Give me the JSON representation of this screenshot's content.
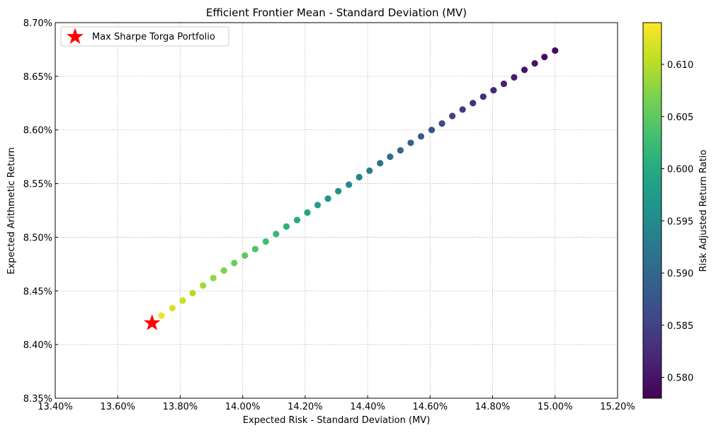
{
  "chart_data": {
    "type": "scatter",
    "title": "Efficient Frontier Mean - Standard Deviation (MV)",
    "xlabel": "Expected Risk - Standard Deviation (MV)",
    "ylabel": "Expected Arithmetic Return",
    "xlim": [
      13.4,
      15.2
    ],
    "ylim": [
      8.35,
      8.7
    ],
    "x_ticks": [
      "13.40%",
      "13.60%",
      "13.80%",
      "14.00%",
      "14.20%",
      "14.40%",
      "14.60%",
      "14.80%",
      "15.00%",
      "15.20%"
    ],
    "y_ticks": [
      "8.35%",
      "8.40%",
      "8.45%",
      "8.50%",
      "8.55%",
      "8.60%",
      "8.65%",
      "8.70%"
    ],
    "grid": true,
    "legend": {
      "position": "top-left",
      "entries": [
        "Max Sharpe Torga Portfolio"
      ]
    },
    "colorbar": {
      "label": "Risk Adjusted Return Ratio",
      "range": [
        0.578,
        0.614
      ],
      "ticks": [
        "0.580",
        "0.585",
        "0.590",
        "0.595",
        "0.600",
        "0.605",
        "0.610"
      ],
      "colormap": "viridis"
    },
    "marker": {
      "name": "Max Sharpe Torga Portfolio",
      "x": 13.71,
      "y": 8.42,
      "color": "#ff0000"
    },
    "points": [
      {
        "x": 13.74,
        "y": 8.427,
        "c": 0.613
      },
      {
        "x": 13.775,
        "y": 8.434,
        "c": 0.612
      },
      {
        "x": 13.808,
        "y": 8.441,
        "c": 0.611
      },
      {
        "x": 13.84,
        "y": 8.448,
        "c": 0.61
      },
      {
        "x": 13.873,
        "y": 8.455,
        "c": 0.609
      },
      {
        "x": 13.906,
        "y": 8.462,
        "c": 0.608
      },
      {
        "x": 13.94,
        "y": 8.469,
        "c": 0.607
      },
      {
        "x": 13.973,
        "y": 8.476,
        "c": 0.606
      },
      {
        "x": 14.007,
        "y": 8.483,
        "c": 0.605
      },
      {
        "x": 14.04,
        "y": 8.489,
        "c": 0.604
      },
      {
        "x": 14.074,
        "y": 8.496,
        "c": 0.603
      },
      {
        "x": 14.107,
        "y": 8.503,
        "c": 0.602
      },
      {
        "x": 14.14,
        "y": 8.51,
        "c": 0.601
      },
      {
        "x": 14.174,
        "y": 8.516,
        "c": 0.6
      },
      {
        "x": 14.207,
        "y": 8.523,
        "c": 0.599
      },
      {
        "x": 14.24,
        "y": 8.53,
        "c": 0.598
      },
      {
        "x": 14.273,
        "y": 8.536,
        "c": 0.597
      },
      {
        "x": 14.306,
        "y": 8.543,
        "c": 0.596
      },
      {
        "x": 14.34,
        "y": 8.549,
        "c": 0.595
      },
      {
        "x": 14.373,
        "y": 8.556,
        "c": 0.594
      },
      {
        "x": 14.406,
        "y": 8.562,
        "c": 0.593
      },
      {
        "x": 14.44,
        "y": 8.569,
        "c": 0.592
      },
      {
        "x": 14.472,
        "y": 8.575,
        "c": 0.591
      },
      {
        "x": 14.505,
        "y": 8.581,
        "c": 0.59
      },
      {
        "x": 14.538,
        "y": 8.588,
        "c": 0.589
      },
      {
        "x": 14.571,
        "y": 8.594,
        "c": 0.588
      },
      {
        "x": 14.605,
        "y": 8.6,
        "c": 0.587
      },
      {
        "x": 14.638,
        "y": 8.606,
        "c": 0.586
      },
      {
        "x": 14.671,
        "y": 8.613,
        "c": 0.585
      },
      {
        "x": 14.704,
        "y": 8.619,
        "c": 0.584
      },
      {
        "x": 14.737,
        "y": 8.625,
        "c": 0.583
      },
      {
        "x": 14.77,
        "y": 8.631,
        "c": 0.583
      },
      {
        "x": 14.803,
        "y": 8.637,
        "c": 0.582
      },
      {
        "x": 14.836,
        "y": 8.643,
        "c": 0.581
      },
      {
        "x": 14.869,
        "y": 8.649,
        "c": 0.581
      },
      {
        "x": 14.902,
        "y": 8.656,
        "c": 0.58
      },
      {
        "x": 14.935,
        "y": 8.662,
        "c": 0.58
      },
      {
        "x": 14.966,
        "y": 8.668,
        "c": 0.579
      },
      {
        "x": 15.0,
        "y": 8.674,
        "c": 0.579
      }
    ]
  }
}
